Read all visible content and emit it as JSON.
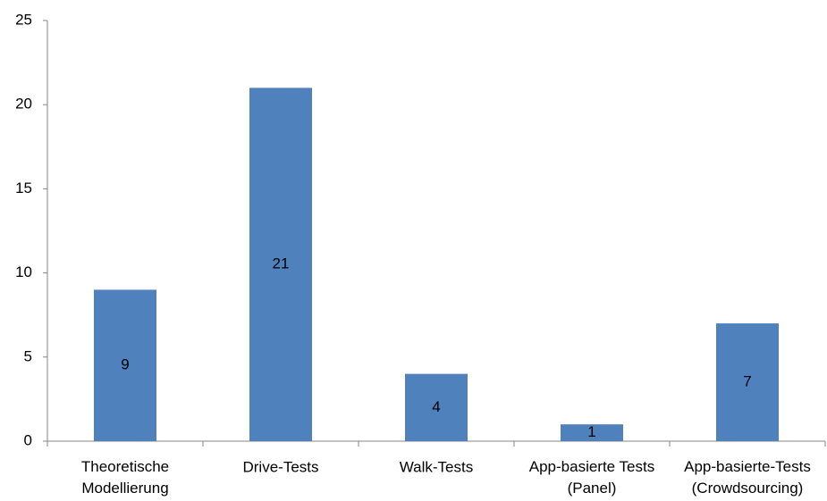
{
  "chart_data": {
    "type": "bar",
    "categories": [
      "Theoretische Modellierung",
      "Drive-Tests",
      "Walk-Tests",
      "App-basierte Tests (Panel)",
      "App-basierte-Tests (Crowdsourcing)"
    ],
    "values": [
      9,
      21,
      4,
      1,
      7
    ],
    "color": "#4f81bd",
    "ylim": [
      0,
      25
    ],
    "yticks": [
      0,
      5,
      10,
      15,
      20,
      25
    ],
    "grid": false
  }
}
